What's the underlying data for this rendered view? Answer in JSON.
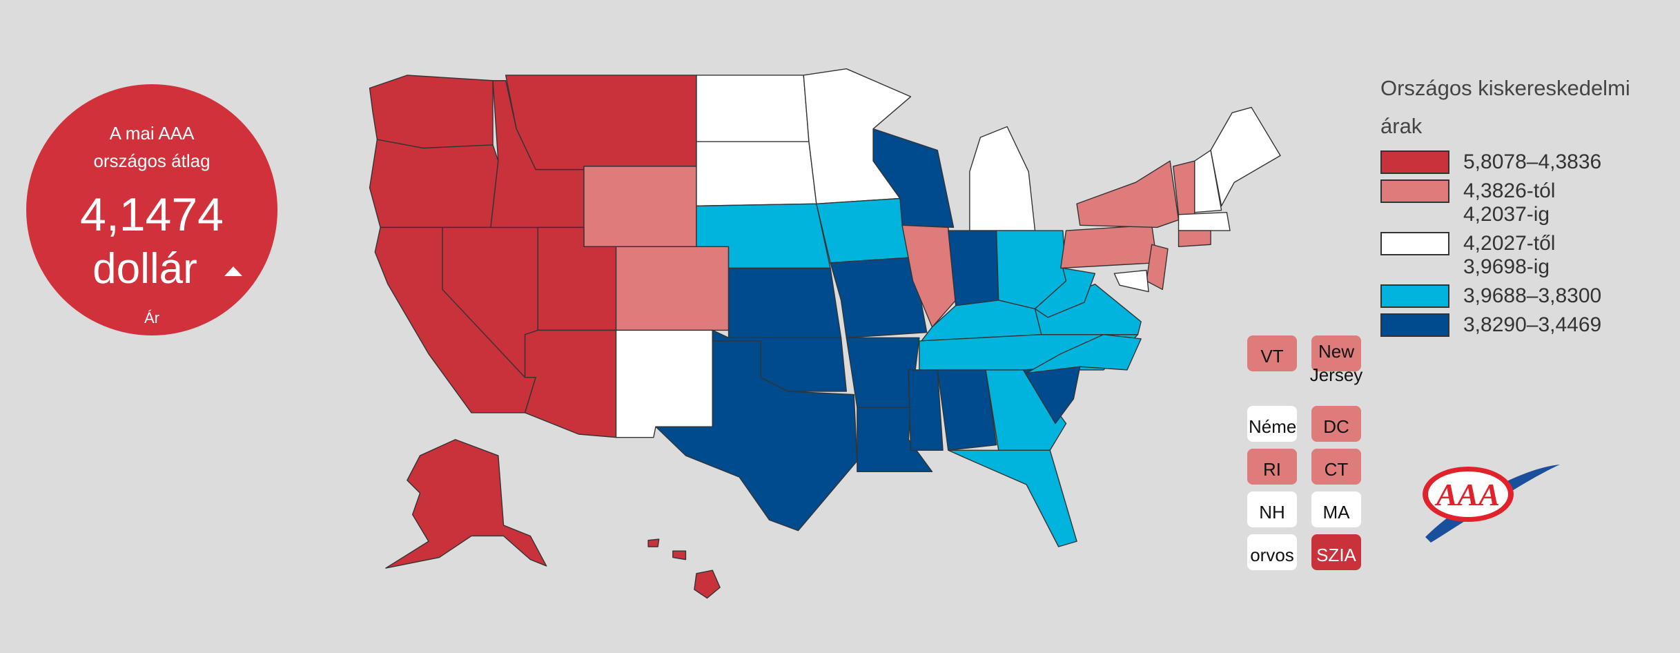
{
  "badge": {
    "line1": "A mai AAA",
    "line2": "országos átlag",
    "price": "4,1474",
    "unit": "dollár",
    "label": "Ár"
  },
  "legend": {
    "title": "Országos kiskereskedelmi árak",
    "items": [
      {
        "label": "5,8078–4,3836",
        "color": "#c9313b"
      },
      {
        "label": "4,3826-tól 4,2037-ig",
        "color": "#de7b7b"
      },
      {
        "label": "4,2027-től 3,9698-ig",
        "color": "#ffffff"
      },
      {
        "label": "3,9688–3,8300",
        "color": "#00b4de"
      },
      {
        "label": "3,8290–3,4469",
        "color": "#004b8d"
      }
    ]
  },
  "small_states": [
    {
      "label": "VT",
      "color": "#de7b7b"
    },
    {
      "label": "New Jersey",
      "color": "#de7b7b"
    },
    {
      "label": "Németo",
      "color": "#ffffff"
    },
    {
      "label": "DC",
      "color": "#de7b7b"
    },
    {
      "label": "RI",
      "color": "#de7b7b"
    },
    {
      "label": "CT",
      "color": "#de7b7b"
    },
    {
      "label": "NH",
      "color": "#ffffff"
    },
    {
      "label": "MA",
      "color": "#ffffff"
    },
    {
      "label": "orvos",
      "color": "#ffffff"
    },
    {
      "label": "SZIA",
      "color": "#c9313b"
    }
  ],
  "logo": "AAA"
}
